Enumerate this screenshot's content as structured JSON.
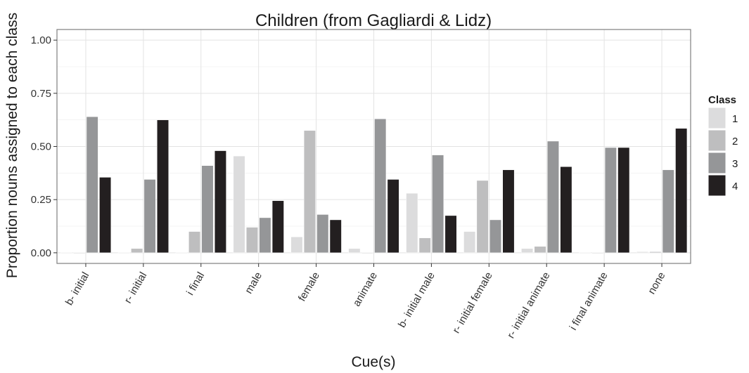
{
  "chart_data": {
    "type": "bar",
    "title": "Children (from Gagliardi & Lidz)",
    "xlabel": "Cue(s)",
    "ylabel": "Proportion nouns assigned to each class",
    "ylim": [
      -0.05,
      1.05
    ],
    "yticks": [
      0.0,
      0.25,
      0.5,
      0.75,
      1.0
    ],
    "ytick_labels": [
      "0.00",
      "0.25",
      "0.50",
      "0.75",
      "1.00"
    ],
    "grid": true,
    "legend": {
      "title": "Class",
      "position": "right"
    },
    "categories": [
      "b- initial",
      "r- initial",
      "i final",
      "male",
      "female",
      "animate",
      "b- initial male",
      "r- initial female",
      "r- initial animate",
      "i final animate",
      "none"
    ],
    "series": [
      {
        "name": "1",
        "color": "#dcdcdd",
        "values": [
          0.0,
          0.0,
          0.0,
          0.455,
          0.075,
          0.02,
          0.28,
          0.1,
          0.02,
          0.0,
          0.005
        ]
      },
      {
        "name": "2",
        "color": "#bebebf",
        "values": [
          0.0,
          0.02,
          0.1,
          0.12,
          0.575,
          0.0,
          0.07,
          0.34,
          0.03,
          0.0,
          0.005
        ]
      },
      {
        "name": "3",
        "color": "#959698",
        "values": [
          0.64,
          0.345,
          0.41,
          0.165,
          0.18,
          0.63,
          0.46,
          0.155,
          0.525,
          0.495,
          0.39
        ]
      },
      {
        "name": "4",
        "color": "#231f20",
        "values": [
          0.355,
          0.625,
          0.48,
          0.245,
          0.155,
          0.345,
          0.175,
          0.39,
          0.405,
          0.495,
          0.585
        ]
      }
    ]
  }
}
